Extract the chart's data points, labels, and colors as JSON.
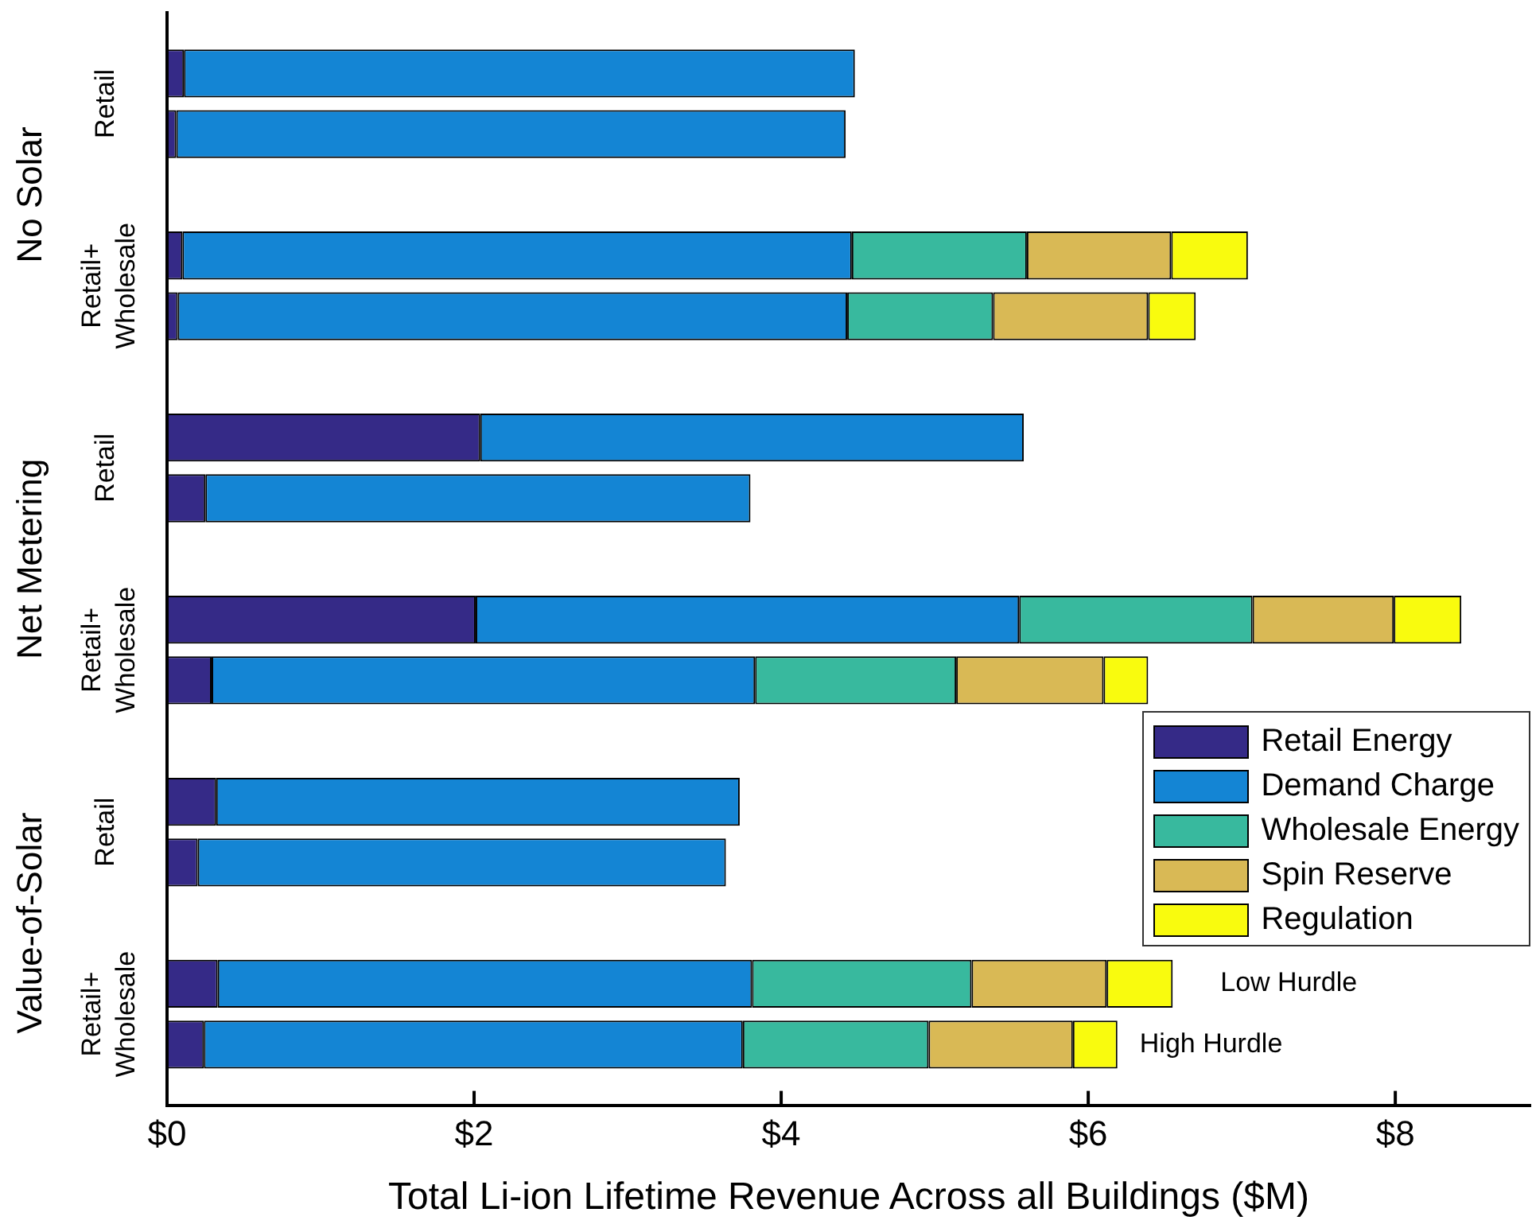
{
  "chart_data": {
    "type": "bar",
    "orientation": "horizontal",
    "stacked": true,
    "xlabel": "Total Li-ion Lifetime Revenue Across all Buildings ($M)",
    "categories": [
      null,
      null,
      null,
      null,
      null,
      null,
      null,
      null,
      null,
      null,
      null,
      null,
      null,
      null,
      null,
      null,
      null
    ],
    "series": [
      {
        "name": "Retail Energy",
        "color": "#352a87",
        "values": [
          0.11,
          0.06,
          null,
          0.1,
          0.07,
          null,
          2.04,
          0.25,
          null,
          2.01,
          0.29,
          null,
          0.32,
          0.2,
          null,
          0.33,
          0.24
        ]
      },
      {
        "name": "Demand Charge",
        "color": "#1485d4",
        "values": [
          4.37,
          4.36,
          null,
          4.36,
          4.36,
          null,
          3.54,
          3.55,
          null,
          3.54,
          3.54,
          null,
          3.41,
          3.44,
          null,
          3.48,
          3.51
        ]
      },
      {
        "name": "Wholesale Energy",
        "color": "#38b99e",
        "values": [
          null,
          null,
          null,
          1.14,
          0.95,
          null,
          null,
          null,
          null,
          1.52,
          1.31,
          null,
          null,
          null,
          null,
          1.43,
          1.21
        ]
      },
      {
        "name": "Spin Reserve",
        "color": "#d9b955",
        "values": [
          null,
          null,
          null,
          0.94,
          1.01,
          null,
          null,
          null,
          null,
          0.92,
          0.96,
          null,
          null,
          null,
          null,
          0.88,
          0.94
        ]
      },
      {
        "name": "Regulation",
        "color": "#f9fb0e",
        "values": [
          null,
          null,
          null,
          0.5,
          0.31,
          null,
          null,
          null,
          null,
          0.44,
          0.29,
          null,
          null,
          null,
          null,
          0.43,
          0.29
        ]
      }
    ],
    "xlim": [
      0,
      8.88
    ],
    "xticks": [
      {
        "value": 0,
        "label": "$0"
      },
      {
        "value": 2,
        "label": "$2"
      },
      {
        "value": 4,
        "label": "$4"
      },
      {
        "value": 6,
        "label": "$6"
      },
      {
        "value": 8,
        "label": "$8"
      }
    ],
    "annotations": [
      "No Solar",
      "Net Metering",
      "Value-of-Solar",
      "Retail",
      "Retail+\nWholesale",
      "Retail",
      "Retail+\nWholesale",
      "Retail",
      "Retail+\nWholesale",
      "Low Hurdle",
      "High Hurdle"
    ],
    "grid": false,
    "legend": "right"
  }
}
